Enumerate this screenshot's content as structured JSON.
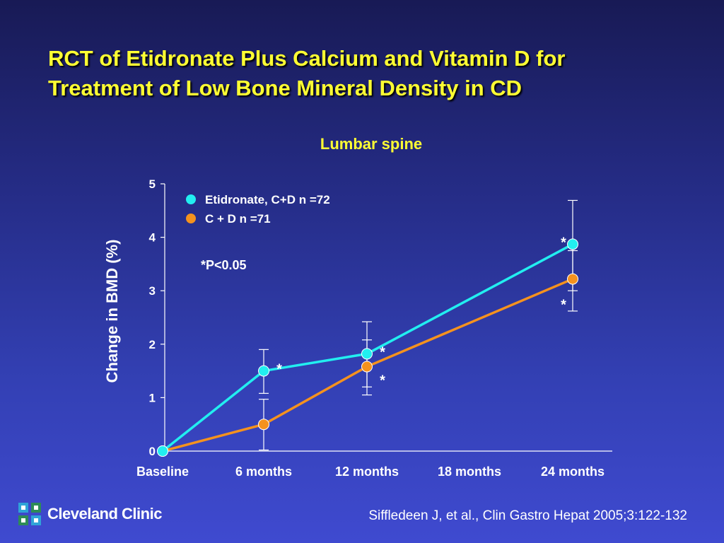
{
  "slide": {
    "title_line1": "RCT of Etidronate Plus Calcium and Vitamin D for",
    "title_line2": "Treatment of Low Bone Mineral Density in CD",
    "logo_text": "Cleveland Clinic",
    "citation": "Siffledeen J, et al., Clin Gastro Hepat 2005;3:122-132"
  },
  "chart_data": {
    "type": "line",
    "title": "Lumbar spine",
    "xlabel": "",
    "ylabel": "Change in BMD (%)",
    "categories": [
      "Baseline",
      "6 months",
      "12 months",
      "18 months",
      "24 months"
    ],
    "ylim": [
      0,
      5
    ],
    "yticks": [
      0,
      1,
      2,
      3,
      4,
      5
    ],
    "grid": false,
    "legend_position": "top-left",
    "annotation": "*P<0.05",
    "series": [
      {
        "name": "Etidronate, C+D n =72",
        "color": "#22eef0",
        "points": [
          {
            "category": "Baseline",
            "value": 0,
            "err_low": 0,
            "err_high": 0,
            "marker": ""
          },
          {
            "category": "6 months",
            "value": 1.5,
            "err_low": 1.08,
            "err_high": 1.9,
            "marker": "*"
          },
          {
            "category": "12 months",
            "value": 1.82,
            "err_low": 1.2,
            "err_high": 2.42,
            "marker": "*"
          },
          {
            "category": "24 months",
            "value": 3.87,
            "err_low": 3.0,
            "err_high": 4.69,
            "marker": "*"
          }
        ]
      },
      {
        "name": "C + D n =71",
        "color": "#f5921e",
        "points": [
          {
            "category": "Baseline",
            "value": 0,
            "err_low": 0,
            "err_high": 0,
            "marker": ""
          },
          {
            "category": "6 months",
            "value": 0.5,
            "err_low": 0.02,
            "err_high": 0.97,
            "marker": ""
          },
          {
            "category": "12 months",
            "value": 1.58,
            "err_low": 1.05,
            "err_high": 2.08,
            "marker": "*"
          },
          {
            "category": "24 months",
            "value": 3.22,
            "err_low": 2.62,
            "err_high": 3.75,
            "marker": "*"
          }
        ]
      }
    ]
  }
}
